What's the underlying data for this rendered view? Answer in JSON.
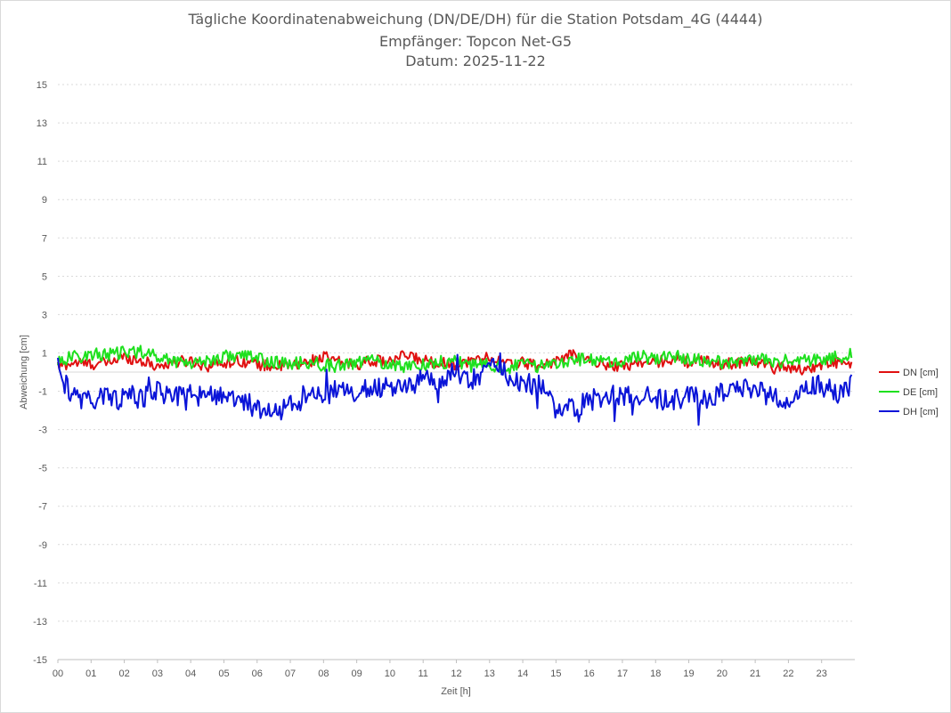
{
  "chart_data": {
    "type": "line",
    "title": "Tägliche Koordinatenabweichung (DN/DE/DH) für die Station Potsdam_4G (4444)",
    "subtitle": "Empfänger: Topcon Net-G5",
    "date_line": "Datum: 2025-11-22",
    "xlabel": "Zeit [h]",
    "ylabel": "Abweichung [cm]",
    "xlim": [
      0,
      24
    ],
    "ylim": [
      -15,
      15
    ],
    "x_ticks": [
      "00",
      "01",
      "02",
      "03",
      "04",
      "05",
      "06",
      "07",
      "08",
      "09",
      "10",
      "11",
      "12",
      "13",
      "14",
      "15",
      "16",
      "17",
      "18",
      "19",
      "20",
      "21",
      "22",
      "23"
    ],
    "y_ticks": [
      "15",
      "13",
      "11",
      "9",
      "7",
      "5",
      "3",
      "1",
      "-1",
      "-3",
      "-5",
      "-7",
      "-9",
      "-11",
      "-13",
      "-15"
    ],
    "legend_position": "right",
    "series": [
      {
        "name": "DN [cm]",
        "color": "#e01010",
        "keypoints": [
          [
            0,
            0.3
          ],
          [
            0.5,
            0.5
          ],
          [
            1,
            0.4
          ],
          [
            1.5,
            0.5
          ],
          [
            2,
            0.8
          ],
          [
            2.5,
            0.6
          ],
          [
            3,
            0.3
          ],
          [
            3.5,
            0.5
          ],
          [
            4,
            0.6
          ],
          [
            4.5,
            0.3
          ],
          [
            5,
            0.5
          ],
          [
            5.5,
            0.6
          ],
          [
            6,
            0.4
          ],
          [
            6.5,
            0.3
          ],
          [
            7,
            0.3
          ],
          [
            7.5,
            0.5
          ],
          [
            8,
            0.8
          ],
          [
            8.5,
            0.5
          ],
          [
            9,
            0.4
          ],
          [
            9.5,
            0.6
          ],
          [
            10,
            0.5
          ],
          [
            10.5,
            0.9
          ],
          [
            11,
            0.6
          ],
          [
            11.5,
            0.5
          ],
          [
            12,
            0.4
          ],
          [
            12.5,
            0.6
          ],
          [
            13,
            0.8
          ],
          [
            13.5,
            0.4
          ],
          [
            14,
            0.5
          ],
          [
            14.5,
            0.3
          ],
          [
            15,
            0.6
          ],
          [
            15.5,
            0.9
          ],
          [
            16,
            0.6
          ],
          [
            16.5,
            0.4
          ],
          [
            17,
            0.3
          ],
          [
            17.5,
            0.5
          ],
          [
            18,
            0.5
          ],
          [
            18.5,
            0.7
          ],
          [
            19,
            0.5
          ],
          [
            19.5,
            0.6
          ],
          [
            20,
            0.4
          ],
          [
            20.5,
            0.5
          ],
          [
            21,
            0.6
          ],
          [
            21.5,
            0.2
          ],
          [
            22,
            0.3
          ],
          [
            22.5,
            0.1
          ],
          [
            23,
            0.4
          ],
          [
            23.5,
            0.5
          ],
          [
            23.9,
            0.3
          ]
        ],
        "amplitude": 0.3
      },
      {
        "name": "DE [cm]",
        "color": "#1ee01e",
        "keypoints": [
          [
            0,
            0.6
          ],
          [
            0.5,
            0.8
          ],
          [
            1,
            0.9
          ],
          [
            1.5,
            0.9
          ],
          [
            2,
            1.0
          ],
          [
            2.5,
            1.1
          ],
          [
            3,
            0.8
          ],
          [
            3.5,
            0.6
          ],
          [
            4,
            0.5
          ],
          [
            4.5,
            0.6
          ],
          [
            5,
            0.8
          ],
          [
            5.5,
            0.9
          ],
          [
            6,
            0.7
          ],
          [
            6.5,
            0.5
          ],
          [
            7,
            0.4
          ],
          [
            7.5,
            0.5
          ],
          [
            8,
            0.4
          ],
          [
            8.5,
            0.3
          ],
          [
            9,
            0.5
          ],
          [
            9.5,
            0.6
          ],
          [
            10,
            0.4
          ],
          [
            10.5,
            0.3
          ],
          [
            11,
            0.4
          ],
          [
            11.5,
            0.5
          ],
          [
            12,
            0.6
          ],
          [
            12.5,
            0.3
          ],
          [
            13,
            0.4
          ],
          [
            13.5,
            0.2
          ],
          [
            14,
            0.4
          ],
          [
            14.5,
            0.3
          ],
          [
            15,
            0.5
          ],
          [
            15.5,
            0.7
          ],
          [
            16,
            0.6
          ],
          [
            16.5,
            0.5
          ],
          [
            17,
            0.6
          ],
          [
            17.5,
            0.8
          ],
          [
            18,
            0.7
          ],
          [
            18.5,
            0.9
          ],
          [
            19,
            0.6
          ],
          [
            19.5,
            0.6
          ],
          [
            20,
            0.5
          ],
          [
            20.5,
            0.6
          ],
          [
            21,
            0.7
          ],
          [
            21.5,
            0.5
          ],
          [
            22,
            0.6
          ],
          [
            22.5,
            0.6
          ],
          [
            23,
            0.7
          ],
          [
            23.5,
            0.8
          ],
          [
            23.9,
            0.9
          ]
        ],
        "amplitude": 0.35
      },
      {
        "name": "DH [cm]",
        "color": "#0a14d8",
        "keypoints": [
          [
            0,
            0.8
          ],
          [
            0.1,
            0.1
          ],
          [
            0.3,
            -1.0
          ],
          [
            0.6,
            -1.4
          ],
          [
            1,
            -1.5
          ],
          [
            1.5,
            -1.3
          ],
          [
            2,
            -1.4
          ],
          [
            2.5,
            -1.4
          ],
          [
            3,
            -1.0
          ],
          [
            3.5,
            -1.3
          ],
          [
            4,
            -1.2
          ],
          [
            4.5,
            -1.3
          ],
          [
            5,
            -1.1
          ],
          [
            5.5,
            -1.5
          ],
          [
            6,
            -1.9
          ],
          [
            6.5,
            -2.1
          ],
          [
            7,
            -1.8
          ],
          [
            7.5,
            -1.0
          ],
          [
            8,
            -1.2
          ],
          [
            8.5,
            -0.9
          ],
          [
            9,
            -1.0
          ],
          [
            9.5,
            -0.8
          ],
          [
            10,
            -0.8
          ],
          [
            10.5,
            -0.9
          ],
          [
            11,
            -0.3
          ],
          [
            11.5,
            -0.4
          ],
          [
            12,
            0.0
          ],
          [
            12.5,
            -0.4
          ],
          [
            13,
            0.0
          ],
          [
            13.3,
            0.6
          ],
          [
            13.5,
            -0.2
          ],
          [
            14,
            -0.6
          ],
          [
            14.5,
            -0.7
          ],
          [
            15,
            -1.8
          ],
          [
            15.5,
            -1.9
          ],
          [
            16,
            -1.5
          ],
          [
            16.5,
            -1.2
          ],
          [
            17,
            -1.3
          ],
          [
            17.5,
            -1.2
          ],
          [
            18,
            -1.4
          ],
          [
            18.5,
            -1.5
          ],
          [
            19,
            -1.3
          ],
          [
            19.5,
            -1.4
          ],
          [
            20,
            -1.0
          ],
          [
            20.5,
            -0.9
          ],
          [
            21,
            -0.9
          ],
          [
            21.5,
            -1.3
          ],
          [
            22,
            -1.4
          ],
          [
            22.5,
            -0.6
          ],
          [
            23,
            -0.7
          ],
          [
            23.5,
            -1.1
          ],
          [
            23.9,
            -0.6
          ]
        ],
        "amplitude": 0.55
      }
    ]
  }
}
